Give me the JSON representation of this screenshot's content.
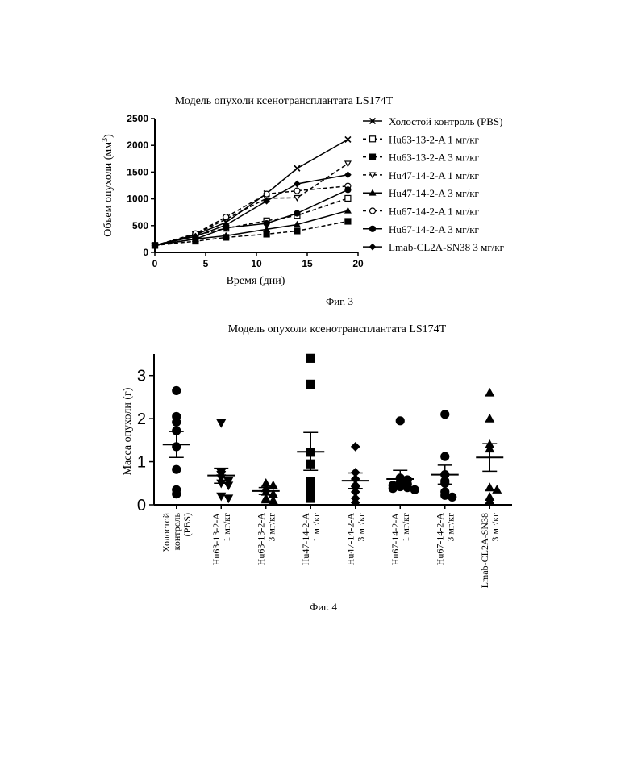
{
  "chart_data": [
    {
      "type": "line",
      "title": "Модель опухоли ксенотрансплантата LS174T",
      "xlabel": "Время (дни)",
      "ylabel": "Объем опухоли (мм",
      "ylabel_sup": "3",
      "ylabel_close": ")",
      "xlim": [
        0,
        20
      ],
      "ylim": [
        0,
        2500
      ],
      "xticks": [
        0,
        5,
        10,
        15,
        20
      ],
      "yticks": [
        0,
        500,
        1000,
        1500,
        2000,
        2500
      ],
      "legend_position": "right",
      "caption": "Фиг. 3",
      "series": [
        {
          "name": "Холостой контроль (PBS)",
          "marker": "x",
          "dash": false,
          "x": [
            0,
            4,
            7,
            11,
            14,
            19
          ],
          "y": [
            130,
            330,
            560,
            1100,
            1570,
            2110
          ]
        },
        {
          "name": "Hu63-13-2-A 1 мг/кг",
          "marker": "square-open",
          "dash": true,
          "x": [
            0,
            4,
            7,
            11,
            14,
            19
          ],
          "y": [
            130,
            320,
            450,
            590,
            690,
            1010
          ]
        },
        {
          "name": "Hu63-13-2-A 3 мг/кг",
          "marker": "square-filled",
          "dash": true,
          "x": [
            0,
            4,
            7,
            11,
            14,
            19
          ],
          "y": [
            130,
            210,
            280,
            340,
            400,
            580
          ]
        },
        {
          "name": "Hu47-14-2-A 1 мг/кг",
          "marker": "triangle-down-open",
          "dash": true,
          "x": [
            0,
            4,
            7,
            11,
            14,
            19
          ],
          "y": [
            130,
            340,
            620,
            1010,
            1020,
            1660
          ]
        },
        {
          "name": "Hu47-14-2-A 3 мг/кг",
          "marker": "triangle-up-filled",
          "dash": false,
          "x": [
            0,
            4,
            7,
            11,
            14,
            19
          ],
          "y": [
            130,
            250,
            310,
            430,
            520,
            780
          ]
        },
        {
          "name": "Hu67-14-2-A 1 мг/кг",
          "marker": "circle-open",
          "dash": true,
          "x": [
            0,
            4,
            7,
            11,
            14,
            19
          ],
          "y": [
            130,
            350,
            660,
            1090,
            1150,
            1240
          ]
        },
        {
          "name": "Hu67-14-2-A 3 мг/кг",
          "marker": "circle-filled",
          "dash": false,
          "x": [
            0,
            4,
            7,
            11,
            14,
            19
          ],
          "y": [
            130,
            250,
            460,
            540,
            730,
            1170
          ]
        },
        {
          "name": "Lmab-CL2A-SN38 3 мг/кг",
          "marker": "diamond-filled",
          "dash": false,
          "x": [
            0,
            4,
            7,
            11,
            14,
            19
          ],
          "y": [
            130,
            300,
            510,
            960,
            1280,
            1450
          ]
        }
      ]
    },
    {
      "type": "scatter",
      "title": "Модель опухоли ксенотрансплантата LS174T",
      "ylabel": "Масса опухоли (г)",
      "ylim": [
        0,
        3.5
      ],
      "yticks": [
        0,
        1,
        2,
        3
      ],
      "caption": "Фиг. 4",
      "groups": [
        {
          "label_lines": [
            "Холостой",
            "контроль",
            "(PBS)"
          ],
          "marker": "circle",
          "points": [
            2.65,
            2.05,
            1.92,
            1.72,
            1.35,
            0.82,
            0.35,
            0.25
          ],
          "mean": 1.4,
          "sem_low": 1.1,
          "sem_high": 1.7
        },
        {
          "label_lines": [
            "Hu63-13-2-A",
            "1 мг/кг"
          ],
          "marker": "triangle-down",
          "points": [
            1.9,
            0.75,
            0.7,
            0.62,
            0.55,
            0.5,
            0.45,
            0.2,
            0.15
          ],
          "mean": 0.68,
          "sem_low": 0.5,
          "sem_high": 0.85
        },
        {
          "label_lines": [
            "Hu63-13-2-A",
            "3 мг/кг"
          ],
          "marker": "triangle-up",
          "points": [
            0.5,
            0.45,
            0.38,
            0.3,
            0.25,
            0.15,
            0.12,
            0.1
          ],
          "mean": 0.32,
          "sem_low": 0.24,
          "sem_high": 0.4
        },
        {
          "label_lines": [
            "Hu47-14-2-A",
            "1 мг/кг"
          ],
          "marker": "square",
          "points": [
            3.4,
            2.8,
            1.22,
            0.95,
            0.55,
            0.35,
            0.3,
            0.15
          ],
          "mean": 1.23,
          "sem_low": 0.8,
          "sem_high": 1.68
        },
        {
          "label_lines": [
            "Hu47-14-2-A",
            "3 мг/кг"
          ],
          "marker": "diamond",
          "points": [
            1.35,
            0.75,
            0.6,
            0.45,
            0.42,
            0.3,
            0.15,
            0.05
          ],
          "mean": 0.56,
          "sem_low": 0.38,
          "sem_high": 0.74
        },
        {
          "label_lines": [
            "Hu67-14-2-A",
            "1 мг/кг"
          ],
          "marker": "circle",
          "points": [
            1.95,
            0.62,
            0.58,
            0.52,
            0.48,
            0.45,
            0.42,
            0.4,
            0.38,
            0.35
          ],
          "mean": 0.6,
          "sem_low": 0.42,
          "sem_high": 0.8
        },
        {
          "label_lines": [
            "Hu67-14-2-A",
            "3 мг/кг"
          ],
          "marker": "circle",
          "points": [
            2.1,
            1.12,
            0.7,
            0.55,
            0.5,
            0.3,
            0.22,
            0.18
          ],
          "mean": 0.7,
          "sem_low": 0.48,
          "sem_high": 0.92
        },
        {
          "label_lines": [
            "Lmab-CL2A-SN38",
            "3 мг/кг"
          ],
          "marker": "triangle-up",
          "points": [
            2.6,
            2.0,
            1.4,
            1.3,
            0.4,
            0.35,
            0.18,
            0.1
          ],
          "mean": 1.1,
          "sem_low": 0.78,
          "sem_high": 1.42
        }
      ]
    }
  ]
}
